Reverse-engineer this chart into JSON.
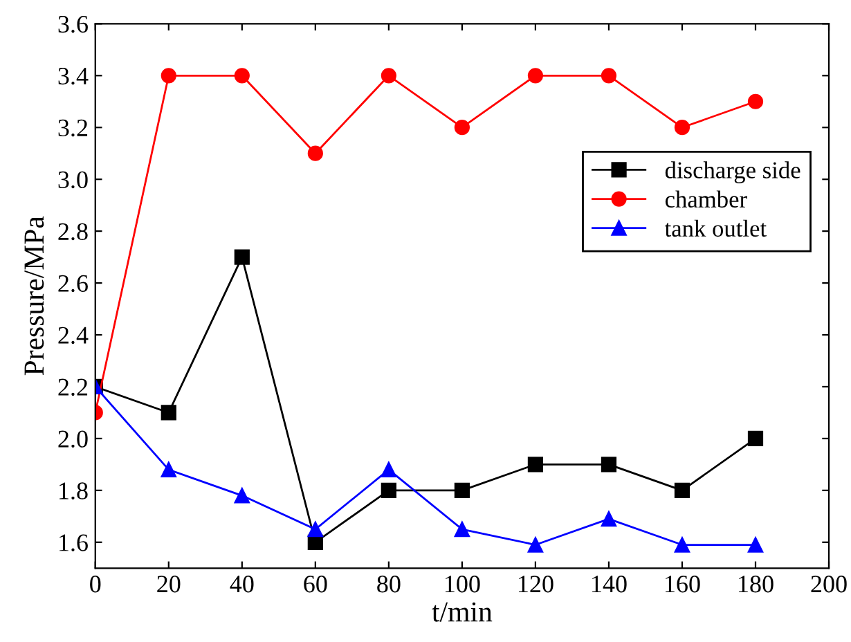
{
  "chart_data": {
    "type": "line",
    "xlabel": "t/min",
    "ylabel": "Pressure/MPa",
    "x": [
      0,
      20,
      40,
      60,
      80,
      100,
      120,
      140,
      160,
      180
    ],
    "series": [
      {
        "name": "discharge side",
        "color": "#000000",
        "marker": "square",
        "values": [
          2.2,
          2.1,
          2.7,
          1.6,
          1.8,
          1.8,
          1.9,
          1.9,
          1.8,
          2.0
        ]
      },
      {
        "name": "chamber",
        "color": "#ff0000",
        "marker": "circle",
        "values": [
          2.1,
          3.4,
          3.4,
          3.1,
          3.4,
          3.2,
          3.4,
          3.4,
          3.2,
          3.3
        ]
      },
      {
        "name": "tank outlet",
        "color": "#0000ff",
        "marker": "triangle",
        "values": [
          2.2,
          1.88,
          1.78,
          1.65,
          1.88,
          1.65,
          1.59,
          1.69,
          1.59,
          1.59
        ]
      }
    ],
    "xlim": [
      0,
      200
    ],
    "xticks": [
      0,
      20,
      40,
      60,
      80,
      100,
      120,
      140,
      160,
      180,
      200
    ],
    "ylim": [
      1.5,
      3.6
    ],
    "yticks": [
      {
        "value": 1.6,
        "label": "1.6"
      },
      {
        "value": 1.8,
        "label": "1.8"
      },
      {
        "value": 2.0,
        "label": "2.0"
      },
      {
        "value": 2.2,
        "label": "2.2"
      },
      {
        "value": 2.4,
        "label": "2.4"
      },
      {
        "value": 2.6,
        "label": "2.6"
      },
      {
        "value": 2.8,
        "label": "2.8"
      },
      {
        "value": 3.0,
        "label": "3.0"
      },
      {
        "value": 3.2,
        "label": "3.2"
      },
      {
        "value": 3.4,
        "label": "3.4"
      },
      {
        "value": 3.6,
        "label": "3.6"
      }
    ],
    "grid": false,
    "legend": "top right",
    "line_style": "solid"
  }
}
